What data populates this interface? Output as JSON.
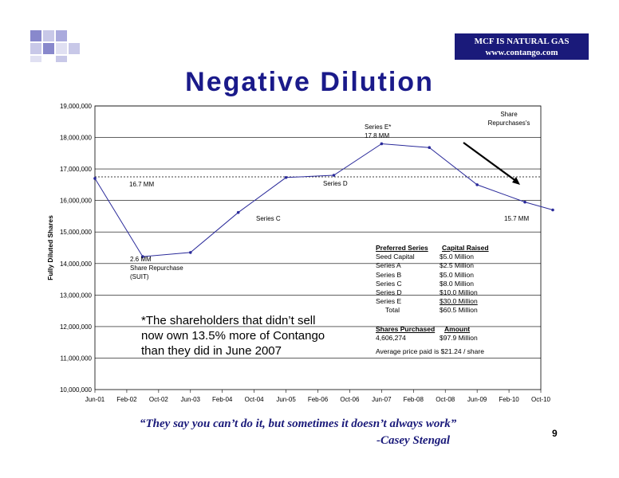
{
  "brand": {
    "line1": "MCF IS NATURAL GAS",
    "line2": "www.contango.com"
  },
  "title": "Negative Dilution",
  "chart_data": {
    "type": "line",
    "ylabel": "Fully Diluted Shares",
    "xlabel": "",
    "ylim": [
      10000000,
      19000000
    ],
    "y_ticks": [
      "10,000,000",
      "11,000,000",
      "12,000,000",
      "13,000,000",
      "14,000,000",
      "15,000,000",
      "16,000,000",
      "17,000,000",
      "18,000,000",
      "19,000,000"
    ],
    "x_ticks": [
      "Jun-01",
      "Feb-02",
      "Oct-02",
      "Jun-03",
      "Feb-04",
      "Oct-04",
      "Jun-05",
      "Feb-06",
      "Oct-06",
      "Jun-07",
      "Feb-08",
      "Oct-08",
      "Jun-09",
      "Feb-10",
      "Oct-10"
    ],
    "series": [
      {
        "values": [
          {
            "x": "Jun-01",
            "y": 16700000
          },
          {
            "x": "Jun-02",
            "y": 14220000
          },
          {
            "x": "Jun-03",
            "y": 14350000
          },
          {
            "x": "Jun-04",
            "y": 15620000
          },
          {
            "x": "Jun-05",
            "y": 16730000
          },
          {
            "x": "Jun-06",
            "y": 16800000
          },
          {
            "x": "Jun-07",
            "y": 17800000
          },
          {
            "x": "Jun-08",
            "y": 17680000
          },
          {
            "x": "Jun-09",
            "y": 16500000
          },
          {
            "x": "Jun-10",
            "y": 15950000
          },
          {
            "x": "Jan-11",
            "y": 15700000
          }
        ]
      }
    ],
    "reference_line": 16750000,
    "grid": true,
    "annotations": [
      {
        "id": "a1",
        "text": "16.7 MM"
      },
      {
        "id": "a2",
        "text": "Series D"
      },
      {
        "id": "a3",
        "text": "Series C"
      },
      {
        "id": "a4",
        "lines": [
          "Series E*",
          "17.8 MM"
        ]
      },
      {
        "id": "a5",
        "lines": [
          "Share",
          "Repurchases's"
        ]
      },
      {
        "id": "a6",
        "text": "15.7 MM"
      },
      {
        "id": "a7",
        "lines": [
          "2.6 MM",
          "Share Repurchase",
          "(SUIT)"
        ]
      }
    ]
  },
  "callout": {
    "line1": "*The shareholders that didn’t sell",
    "line2": "now own 13.5% more of Contango",
    "line3": "than they did in June 2007"
  },
  "preferred_table": {
    "h1": "Preferred Series",
    "h2": "Capital Raised",
    "rows": [
      {
        "name": "Seed Capital",
        "amount": "$5.0 Million"
      },
      {
        "name": "Series A",
        "amount": "$2.5 Million"
      },
      {
        "name": "Series B",
        "amount": "$5.0 Million"
      },
      {
        "name": "Series C",
        "amount": "$8.0 Million"
      },
      {
        "name": "Series D",
        "amount": "$10.0 Million"
      },
      {
        "name": "Series E",
        "amount": "$30.0 Million"
      },
      {
        "name": "Total",
        "amount": "$60.5 Million"
      }
    ]
  },
  "shares_table": {
    "h1": "Shares Purchased",
    "h2": "Amount",
    "count": "4,606,274",
    "amount": "$97.9 Million",
    "avg": "Average price paid is $21.24 / share"
  },
  "quote": "“They say you can’t do it, but sometimes it doesn’t always work”",
  "author": "-Casey Stengal",
  "page_number": "9"
}
